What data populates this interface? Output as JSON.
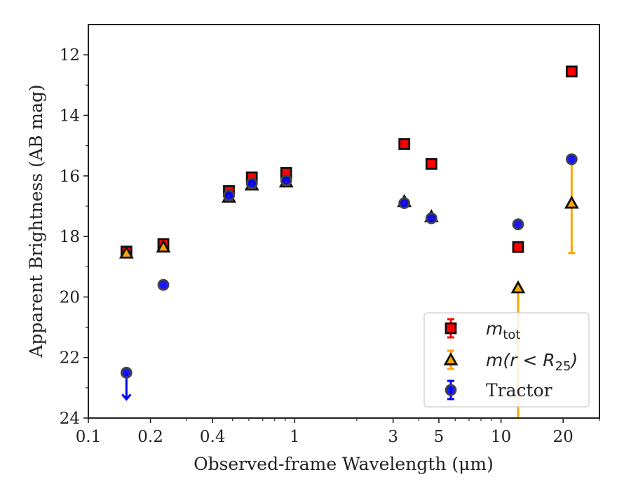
{
  "chart_data": {
    "type": "scatter",
    "xlabel": "Observed-frame Wavelength (μm)",
    "ylabel": "Apparent Brightness (AB mag)",
    "x_scale": "log",
    "xlim": [
      0.1,
      30
    ],
    "ylim": [
      24,
      11
    ],
    "y_inverted": true,
    "x_ticks": [
      {
        "value": 0.1,
        "label": "0.1"
      },
      {
        "value": 0.2,
        "label": "0.2"
      },
      {
        "value": 0.4,
        "label": "0.4"
      },
      {
        "value": 1,
        "label": "1"
      },
      {
        "value": 3,
        "label": "3"
      },
      {
        "value": 5,
        "label": "5"
      },
      {
        "value": 10,
        "label": "10"
      },
      {
        "value": 20,
        "label": "20"
      }
    ],
    "x_minor_ticks": [
      0.3,
      0.5,
      0.6,
      0.7,
      0.8,
      0.9,
      2,
      4,
      6,
      7,
      8,
      9,
      30
    ],
    "y_ticks": [
      {
        "value": 12,
        "label": "12"
      },
      {
        "value": 14,
        "label": "14"
      },
      {
        "value": 16,
        "label": "16"
      },
      {
        "value": 18,
        "label": "18"
      },
      {
        "value": 20,
        "label": "20"
      },
      {
        "value": 22,
        "label": "22"
      },
      {
        "value": 24,
        "label": "24"
      }
    ],
    "legend_position": "bottom-right",
    "series": [
      {
        "name": "m_tot",
        "legend_main": "m",
        "legend_sub": "tot",
        "marker": "square",
        "color": "#ff0000",
        "edge_color": "#111111",
        "points": [
          {
            "x": 0.153,
            "y": 18.5
          },
          {
            "x": 0.231,
            "y": 18.25
          },
          {
            "x": 0.48,
            "y": 16.5
          },
          {
            "x": 0.62,
            "y": 16.05
          },
          {
            "x": 0.91,
            "y": 15.9
          },
          {
            "x": 3.4,
            "y": 14.95
          },
          {
            "x": 4.6,
            "y": 15.6
          },
          {
            "x": 12.1,
            "y": 18.35
          },
          {
            "x": 22.0,
            "y": 12.55
          }
        ]
      },
      {
        "name": "m(r < R_25)",
        "legend_main": "m(r < R",
        "legend_sub": "25",
        "legend_tail": ")",
        "marker": "triangle",
        "color": "#ffa500",
        "edge_color": "#111111",
        "points": [
          {
            "x": 0.153,
            "y": 18.55
          },
          {
            "x": 0.231,
            "y": 18.35
          },
          {
            "x": 0.48,
            "y": 16.7
          },
          {
            "x": 0.62,
            "y": 16.3
          },
          {
            "x": 0.91,
            "y": 16.2
          },
          {
            "x": 3.4,
            "y": 16.85
          },
          {
            "x": 4.6,
            "y": 17.35
          },
          {
            "x": 12.1,
            "y": 19.7,
            "yerr": [
              19.7,
              24
            ]
          },
          {
            "x": 22.0,
            "y": 16.9,
            "yerr": [
              15.35,
              18.55
            ]
          }
        ]
      },
      {
        "name": "Tractor",
        "marker": "circle",
        "color": "#0000ff",
        "edge_color": "#444444",
        "points": [
          {
            "x": 0.153,
            "y": 22.5,
            "upper_limit": true
          },
          {
            "x": 0.231,
            "y": 19.6
          },
          {
            "x": 0.48,
            "y": 16.65
          },
          {
            "x": 0.62,
            "y": 16.25
          },
          {
            "x": 0.91,
            "y": 16.15
          },
          {
            "x": 3.4,
            "y": 16.9
          },
          {
            "x": 4.6,
            "y": 17.4
          },
          {
            "x": 12.1,
            "y": 17.6
          },
          {
            "x": 22.0,
            "y": 15.45
          }
        ]
      }
    ]
  }
}
